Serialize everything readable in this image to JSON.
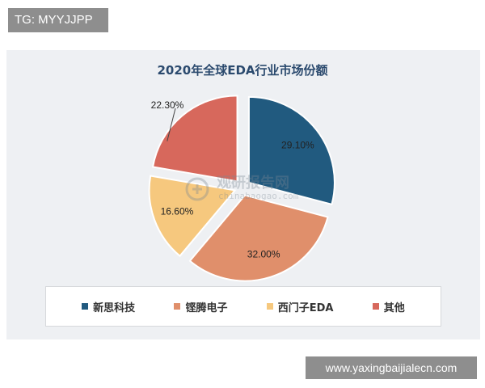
{
  "overlay": {
    "tg_label": "TG: MYYJJPP",
    "url": "www.yaxingbaijialecn.com"
  },
  "watermark": {
    "text": "观研报告网",
    "sub": "chinabaogao.com"
  },
  "chart_data": {
    "type": "pie",
    "title": "2020年全球EDA行业市场份额",
    "slices": [
      {
        "name": "新思科技",
        "value": 29.1,
        "label": "29.10%",
        "color": "#215a7f"
      },
      {
        "name": "铿腾电子",
        "value": 32.0,
        "label": "32.00%",
        "color": "#e08f6b"
      },
      {
        "name": "西门子EDA",
        "value": 16.6,
        "label": "16.60%",
        "color": "#f6c87e"
      },
      {
        "name": "其他",
        "value": 22.3,
        "label": "22.30%",
        "color": "#d7685c"
      }
    ],
    "legend_position": "bottom",
    "exploded": true
  }
}
